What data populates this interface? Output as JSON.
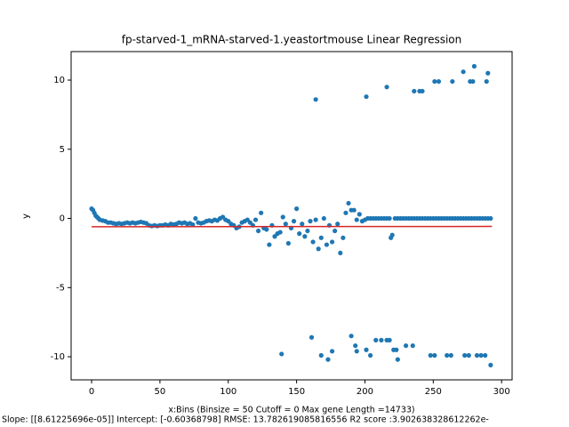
{
  "chart_data": {
    "type": "scatter",
    "title": "fp-starved-1_mRNA-starved-1.yeastortmouse Linear Regression",
    "x_label": "x:Bins  (Binsize = 50 Cutoff = 0 Max gene Length =14733)",
    "x_label_2": "Slope: [[8.61225696e-05]] Intercept: [-0.60368798] RMSE: 13.782619085816556 R2 score :3.902638328612262e-",
    "y_label": "y",
    "xlim": [
      -15,
      307.7
    ],
    "ylim": [
      -11.67,
      12.06
    ],
    "xticks": [
      0,
      50,
      100,
      150,
      200,
      250,
      300
    ],
    "yticks": [
      -10,
      -5,
      0,
      5,
      10
    ],
    "grid": false,
    "series": [
      {
        "color": "#1f77b4",
        "x": [
          0,
          1,
          2,
          3,
          4,
          5,
          6,
          8,
          10,
          12,
          14,
          16,
          18,
          20,
          22,
          24,
          26,
          28,
          30,
          32,
          34,
          36,
          38,
          40,
          42,
          44,
          46,
          48,
          50,
          52,
          54,
          56,
          58,
          60,
          62,
          64,
          66,
          68,
          70,
          72,
          74,
          76,
          78,
          80,
          82,
          84,
          86,
          88,
          90,
          92,
          94,
          96,
          98,
          100,
          102,
          104,
          106,
          108,
          110,
          112,
          114,
          116,
          118,
          120,
          122,
          124,
          126,
          128,
          130,
          132,
          134,
          136,
          138,
          140,
          142,
          144,
          146,
          148,
          150,
          152,
          154,
          156,
          158,
          160,
          162,
          164,
          166,
          168,
          170,
          172,
          174,
          176,
          178,
          180,
          182,
          184,
          186,
          188,
          190,
          192,
          194,
          196,
          198,
          200,
          202,
          204,
          206,
          208,
          210,
          212,
          214,
          216,
          218,
          219,
          220,
          222,
          224,
          226,
          228,
          230,
          232,
          234,
          236,
          238,
          240,
          242,
          244,
          246,
          248,
          250,
          252,
          254,
          256,
          258,
          260,
          262,
          264,
          266,
          268,
          270,
          272,
          274,
          276,
          278,
          280,
          282,
          284,
          286,
          288,
          290,
          292,
          164,
          201,
          216,
          236,
          240,
          242,
          251,
          254,
          264,
          272,
          277,
          279,
          280,
          289,
          290,
          139,
          161,
          168,
          173,
          176,
          190,
          193,
          194,
          201,
          204,
          208,
          212,
          216,
          218,
          221,
          223,
          224,
          230,
          235,
          248,
          251,
          260,
          263,
          273,
          276,
          282,
          285,
          288,
          292
        ],
        "values": [
          0.7,
          0.6,
          0.4,
          0.2,
          0.1,
          0.0,
          -0.1,
          -0.15,
          -0.2,
          -0.3,
          -0.3,
          -0.35,
          -0.4,
          -0.35,
          -0.4,
          -0.35,
          -0.3,
          -0.35,
          -0.3,
          -0.35,
          -0.3,
          -0.25,
          -0.3,
          -0.35,
          -0.5,
          -0.55,
          -0.5,
          -0.55,
          -0.5,
          -0.5,
          -0.45,
          -0.5,
          -0.4,
          -0.45,
          -0.4,
          -0.3,
          -0.35,
          -0.3,
          -0.4,
          -0.35,
          -0.45,
          0.0,
          -0.3,
          -0.35,
          -0.3,
          -0.2,
          -0.15,
          -0.2,
          -0.1,
          -0.15,
          0.0,
          0.1,
          -0.1,
          -0.2,
          -0.4,
          -0.5,
          -0.7,
          -0.6,
          -0.3,
          -0.2,
          -0.1,
          -0.3,
          -0.5,
          -0.1,
          -0.9,
          0.4,
          -0.7,
          -0.8,
          -1.9,
          -0.5,
          -1.3,
          -1.1,
          -1.0,
          0.1,
          -0.4,
          -1.8,
          -0.7,
          -0.2,
          0.7,
          -1.1,
          -0.4,
          -1.3,
          -0.9,
          -0.2,
          -1.7,
          -0.1,
          -2.2,
          -1.4,
          0.0,
          -1.9,
          -0.5,
          -1.7,
          -0.9,
          -0.4,
          -2.5,
          -1.4,
          0.4,
          1.1,
          0.6,
          0.6,
          -0.1,
          0.3,
          -0.2,
          -0.1,
          0,
          0,
          0,
          0,
          0,
          0,
          0,
          0,
          0,
          -1.4,
          -1.2,
          0,
          0,
          0,
          0,
          0,
          0,
          0,
          0,
          0,
          0,
          0,
          0,
          0,
          0,
          0,
          0,
          0,
          0,
          0,
          0,
          0,
          0,
          0,
          0,
          0,
          0,
          0,
          0,
          0,
          0,
          0,
          0,
          0,
          0,
          0,
          0,
          8.6,
          8.8,
          9.5,
          9.2,
          9.2,
          9.2,
          9.9,
          9.9,
          9.9,
          10.6,
          9.9,
          9.9,
          11.0,
          9.9,
          10.5,
          -9.8,
          -8.6,
          -9.9,
          -10.2,
          -9.6,
          -8.5,
          -9.2,
          -9.6,
          -9.5,
          -9.9,
          -8.8,
          -8.8,
          -8.8,
          -8.8,
          -9.5,
          -9.5,
          -10.2,
          -9.2,
          -9.2,
          -9.9,
          -9.9,
          -9.9,
          -9.9,
          -9.9,
          -9.9,
          -9.9,
          -9.9,
          -9.9,
          -10.6
        ]
      }
    ],
    "regression_line": {
      "color": "#d62728",
      "x": [
        0,
        293
      ],
      "values": [
        -0.6037,
        -0.5784
      ]
    }
  }
}
